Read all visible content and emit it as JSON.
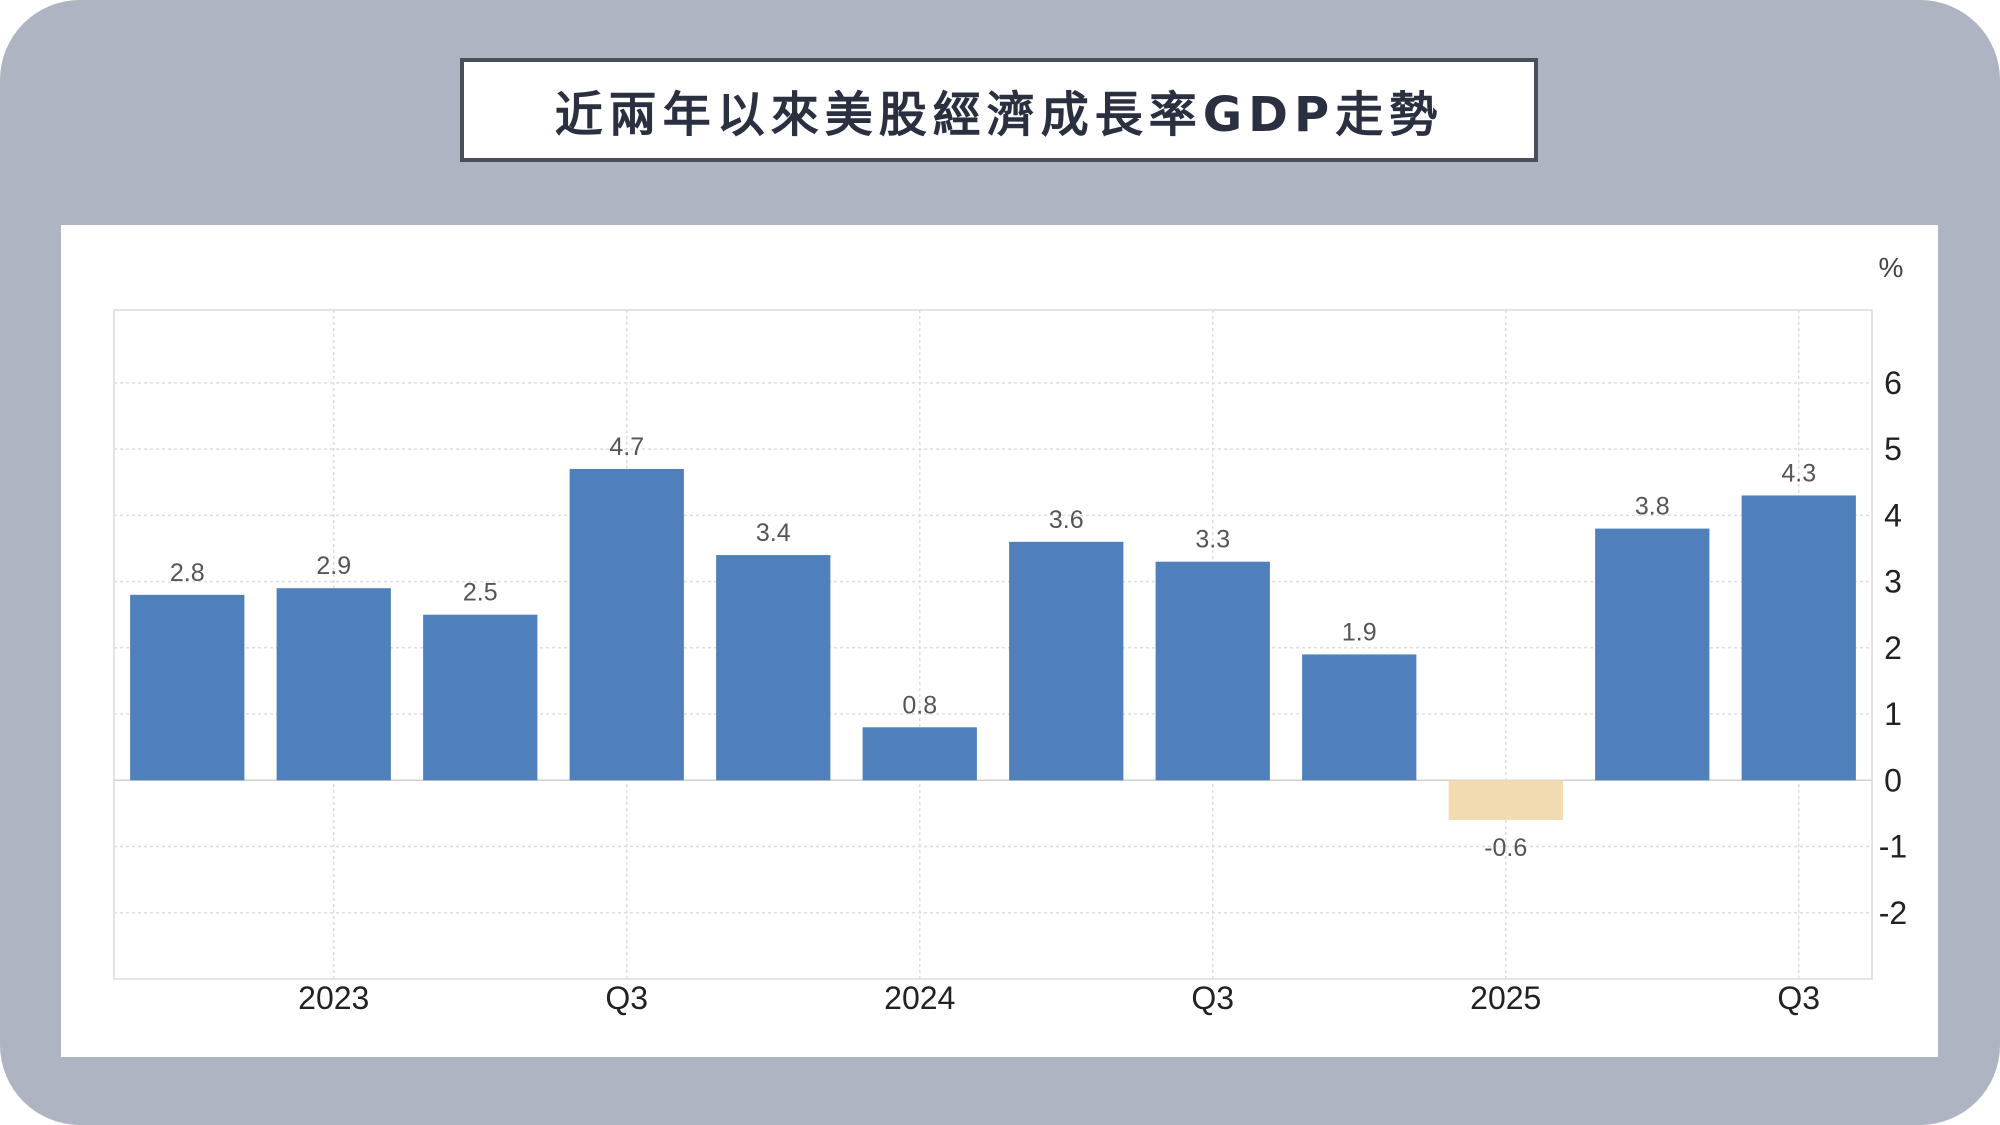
{
  "title": "近兩年以來美股經濟成長率GDP走勢",
  "chart_data": {
    "type": "bar",
    "title": "近兩年以來美股經濟成長率GDP走勢",
    "unit": "%",
    "values": [
      2.8,
      2.9,
      2.5,
      4.7,
      3.4,
      0.8,
      3.6,
      3.3,
      1.9,
      -0.6,
      3.8,
      4.3
    ],
    "value_labels": [
      "2.8",
      "2.9",
      "2.5",
      "4.7",
      "3.4",
      "0.8",
      "3.6",
      "3.3",
      "1.9",
      "-0.6",
      "3.8",
      "4.3"
    ],
    "x_tick_labels": [
      "2023",
      "Q3",
      "2024",
      "Q3",
      "2025",
      "Q3"
    ],
    "x_tick_positions": [
      1.5,
      3.5,
      5.5,
      7.5,
      9.5,
      11.5
    ],
    "y_ticks": [
      6,
      5,
      4,
      3,
      2,
      1,
      0,
      -1,
      -2
    ],
    "ylim": [
      -3,
      7.1
    ],
    "y_axis_side": "right",
    "grid": true,
    "colors": {
      "positive": "#4f80bb",
      "negative": "#f2dbb0"
    }
  }
}
